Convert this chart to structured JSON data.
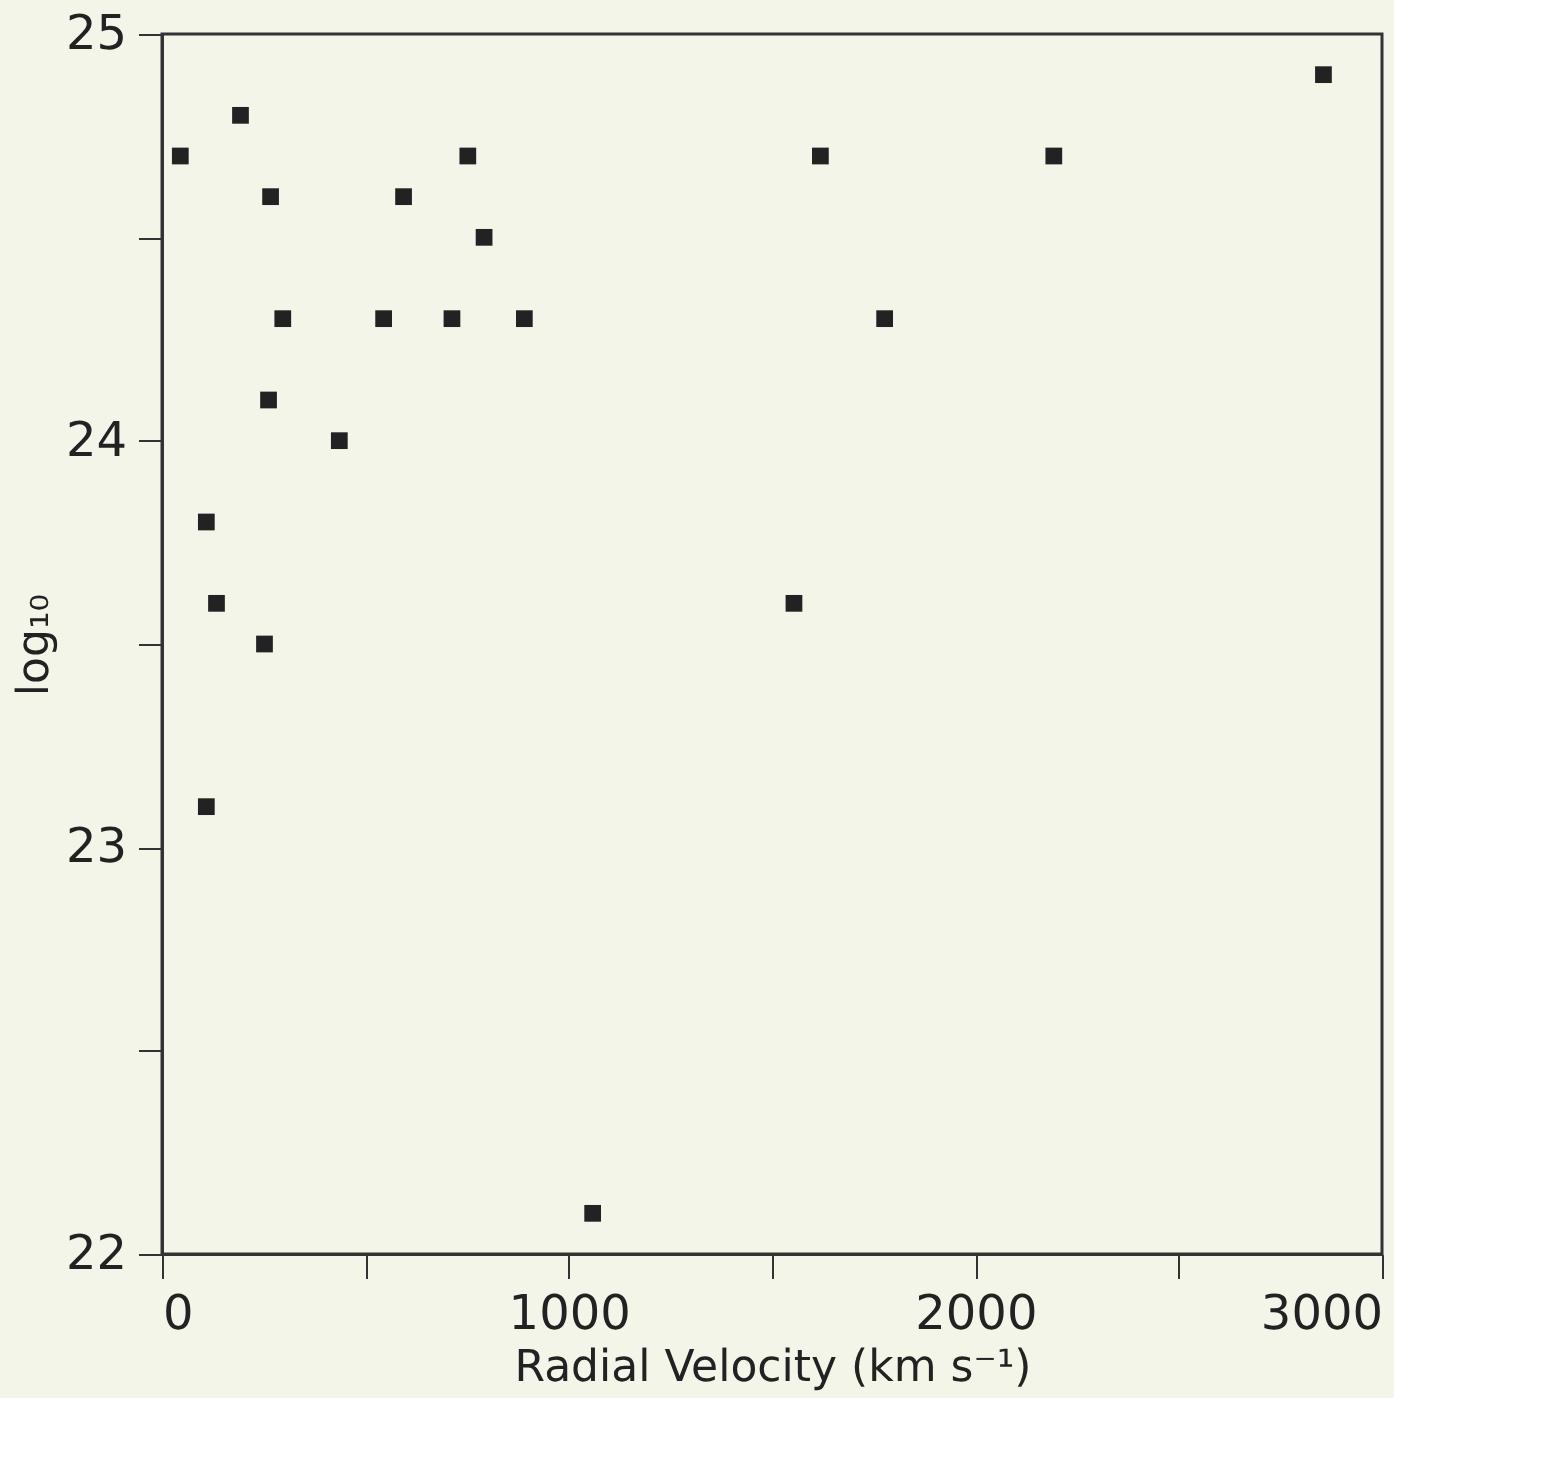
{
  "chart_data": {
    "type": "scatter",
    "xlabel": "Radial Velocity (km s⁻¹)",
    "ylabel": "log₁₀",
    "x": [
      45,
      193,
      267,
      297,
      262,
      436,
      545,
      594,
      713,
      752,
      792,
      891,
      1619,
      1777,
      2193,
      2856,
      109,
      134,
      252,
      109,
      1554,
      1059
    ],
    "series": [
      {
        "color": "#222222",
        "values": [
          24.7,
          24.8,
          24.6,
          24.3,
          24.1,
          24.0,
          24.3,
          24.6,
          24.3,
          24.7,
          24.5,
          24.3,
          24.7,
          24.3,
          24.7,
          24.9,
          23.8,
          23.6,
          23.5,
          23.1,
          23.6,
          22.1
        ]
      }
    ],
    "xlim": [
      0,
      3000
    ],
    "xticks": [
      0,
      {
        "value": 500,
        "label": null
      },
      1000,
      {
        "value": 1500,
        "label": null
      },
      2000,
      {
        "value": 2500,
        "label": null
      },
      3000
    ],
    "ylim": [
      22,
      25
    ],
    "yticks": [
      22,
      {
        "value": 22.5,
        "label": null
      },
      23,
      {
        "value": 23.5,
        "label": null
      },
      24,
      {
        "value": 24.5,
        "label": null
      },
      25
    ],
    "grid": false,
    "marker": "square",
    "legend": false
  }
}
